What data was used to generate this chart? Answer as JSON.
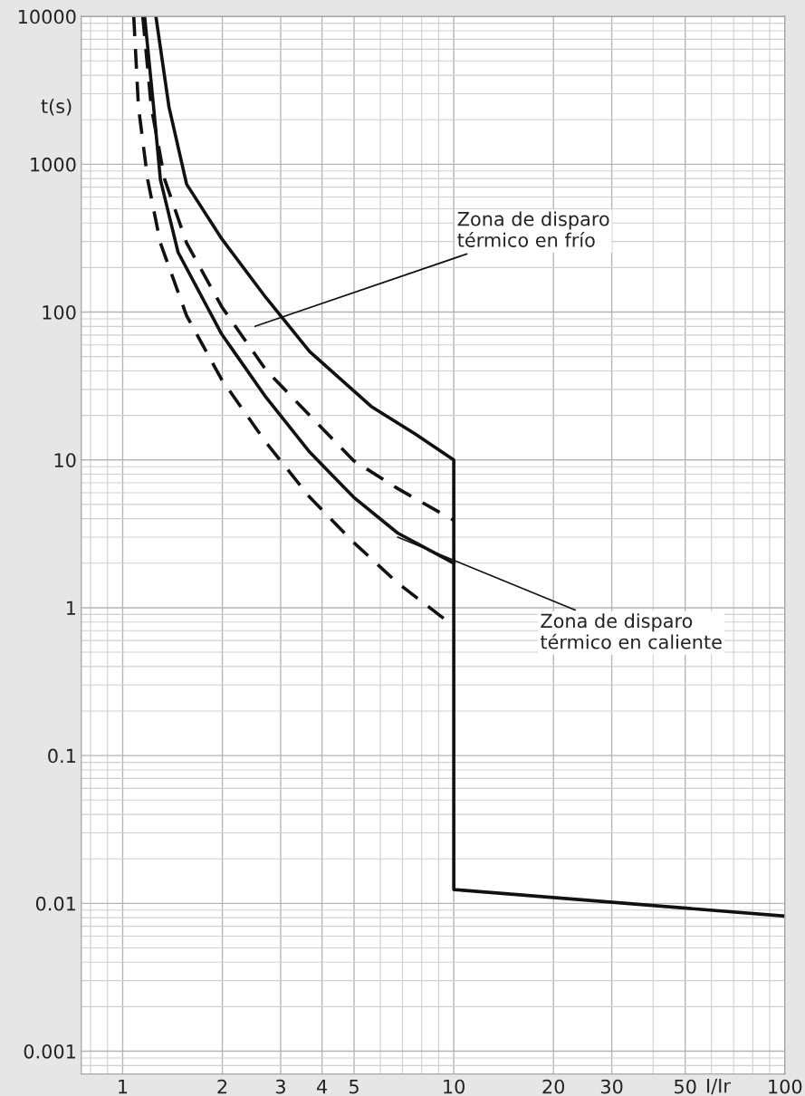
{
  "chart_data": {
    "type": "line",
    "xlabel": "I/Ir",
    "ylabel": "t(s)",
    "log": "xy",
    "grid": true,
    "marker": "none",
    "xlim": [
      0.75,
      100
    ],
    "xticks": [
      1,
      2,
      3,
      4,
      5,
      10,
      20,
      30,
      50,
      100
    ],
    "ylim": [
      0.0007,
      10000
    ],
    "yticks": [
      0.001,
      0.01,
      0.1,
      1,
      10,
      100,
      1000,
      10000
    ],
    "series": [
      {
        "color": "#111111",
        "line_style": "solid",
        "x": [
          1.26,
          1.38,
          1.56,
          1.99,
          2.71,
          3.67,
          5.63,
          7.64,
          10,
          10,
          100
        ],
        "values": [
          10000,
          2440,
          733,
          314,
          125,
          54,
          23,
          15,
          10,
          0.0124,
          0.0082
        ]
      },
      {
        "color": "#111111",
        "line_style": "dashed",
        "x": [
          1.15,
          1.22,
          1.34,
          1.56,
          1.99,
          2.71,
          3.67,
          4.98,
          6.77,
          10
        ],
        "values": [
          10000,
          2440,
          787,
          293,
          109,
          40.5,
          20,
          9.9,
          6.4,
          3.9
        ]
      },
      {
        "color": "#111111",
        "line_style": "solid",
        "x": [
          1.165,
          1.24,
          1.3,
          1.47,
          1.99,
          2.71,
          3.67,
          4.98,
          6.77,
          10
        ],
        "values": [
          10000,
          2440,
          787,
          254,
          71,
          26.5,
          11.3,
          5.6,
          3.2,
          2.0
        ]
      },
      {
        "color": "#111111",
        "line_style": "dashed",
        "x": [
          1.08,
          1.116,
          1.19,
          1.3,
          1.56,
          1.99,
          2.71,
          3.67,
          4.98,
          6.77,
          10
        ],
        "values": [
          10000,
          2440,
          787,
          293,
          94.5,
          35,
          13.1,
          5.6,
          2.77,
          1.47,
          0.75
        ]
      }
    ],
    "annotations": [
      "Zona de disparo\ntérmico en frío",
      {
        "text": "Zona de disparo\ntérmico en caliente",
        "x": 6.77,
        "y": 3.0
      }
    ]
  }
}
